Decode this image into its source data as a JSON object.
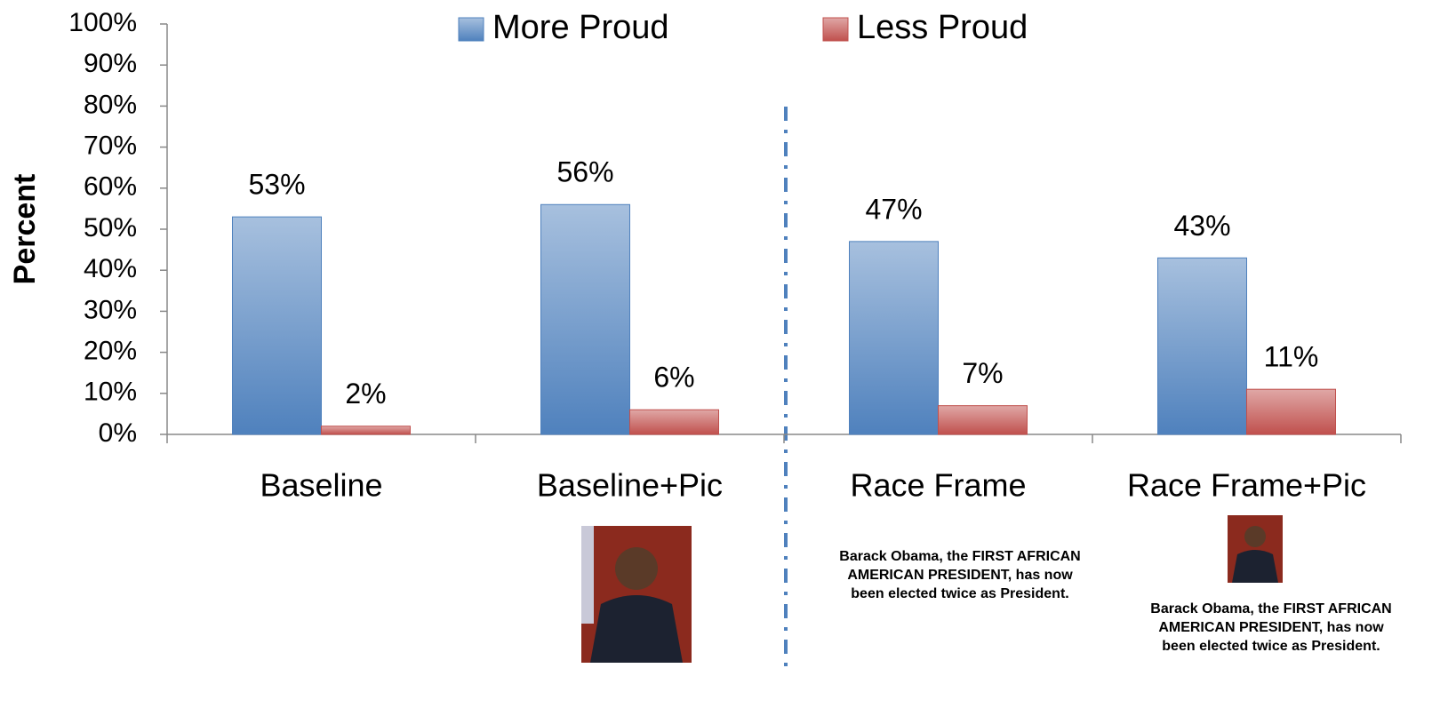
{
  "chart_data": {
    "type": "bar",
    "y_label": "Percent",
    "categories": [
      "Baseline",
      "Baseline+Pic",
      "Race Frame",
      "Race Frame+Pic"
    ],
    "series": [
      {
        "name": "More Proud",
        "color": "#4f81bd",
        "values": [
          53,
          56,
          47,
          43
        ],
        "value_labels": [
          "53%",
          "56%",
          "47%",
          "43%"
        ]
      },
      {
        "name": "Less Proud",
        "color": "#c0504d",
        "values": [
          2,
          6,
          7,
          11
        ],
        "value_labels": [
          "2%",
          "6%",
          "7%",
          "11%"
        ]
      }
    ],
    "ylim": [
      0,
      100
    ],
    "yticks": [
      {
        "value": 0,
        "label": "0%"
      },
      {
        "value": 10,
        "label": "10%"
      },
      {
        "value": 20,
        "label": "20%"
      },
      {
        "value": 30,
        "label": "30%"
      },
      {
        "value": 40,
        "label": "40%"
      },
      {
        "value": 50,
        "label": "50%"
      },
      {
        "value": 60,
        "label": "60%"
      },
      {
        "value": 70,
        "label": "70%"
      },
      {
        "value": 80,
        "label": "80%"
      },
      {
        "value": 90,
        "label": "90%"
      },
      {
        "value": 100,
        "label": "100%"
      }
    ],
    "legend": "top",
    "annotations": [
      "Barack Obama, the FIRST AFRICAN AMERICAN PRESIDENT, has now been elected twice as President.",
      "Barack Obama, the FIRST AFRICAN AMERICAN PRESIDENT, has now been elected twice as President."
    ]
  }
}
